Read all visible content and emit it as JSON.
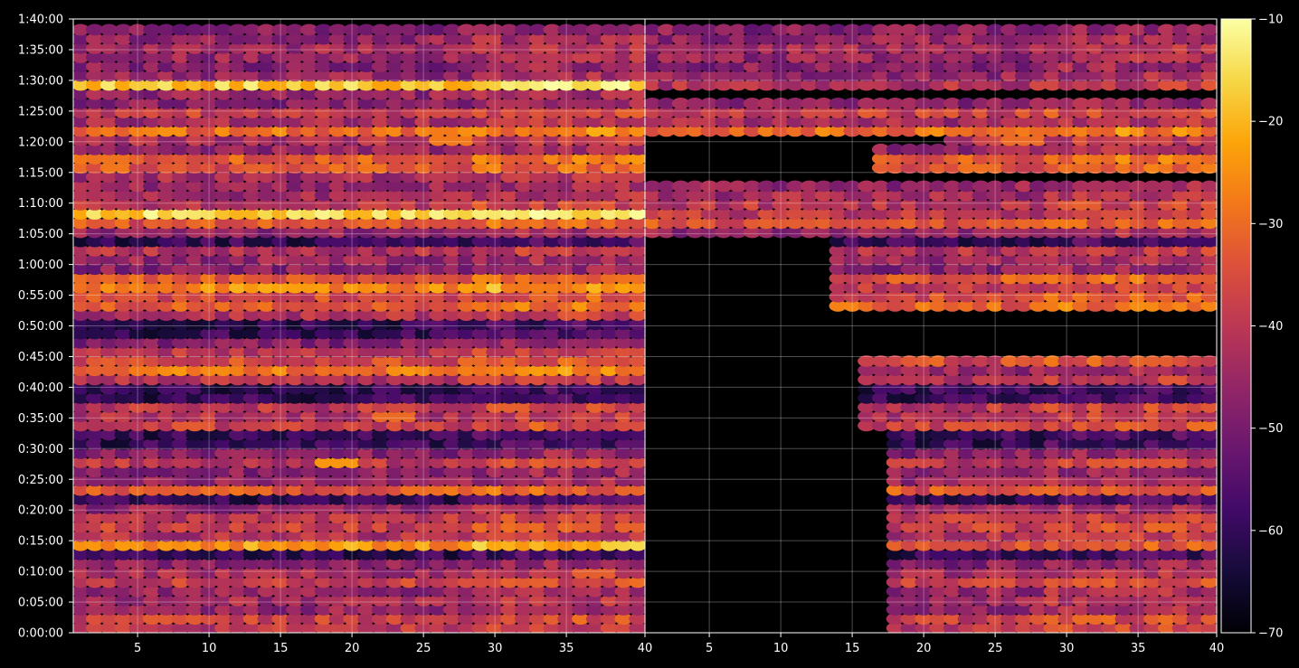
{
  "chart_data": {
    "type": "heatmap",
    "panels": [
      {
        "xlim": [
          1,
          40
        ],
        "xticks": [
          5,
          10,
          15,
          20,
          25,
          30,
          35
        ],
        "row_profile": [
          [
            0.7,
            -40
          ],
          [
            1.9,
            -38
          ],
          [
            3.2,
            -46
          ],
          [
            4.4,
            -40
          ],
          [
            5.8,
            -44
          ],
          [
            7.3,
            -46
          ],
          [
            8.8,
            -38
          ],
          [
            10.2,
            -44
          ],
          [
            11.7,
            -48
          ],
          [
            13.6,
            -24
          ],
          [
            15.2,
            -42
          ],
          [
            16.7,
            -38
          ],
          [
            18.3,
            -40
          ],
          [
            19.7,
            -46
          ],
          [
            22.9,
            -34
          ],
          [
            24.3,
            -46
          ],
          [
            25.8,
            -48
          ],
          [
            27.6,
            -40
          ],
          [
            28.7,
            -48
          ],
          [
            33.1,
            -38
          ],
          [
            34.6,
            -42
          ],
          [
            35.9,
            -32
          ],
          [
            37.4,
            -40
          ],
          [
            40.7,
            -42
          ],
          [
            42.1,
            -28
          ],
          [
            43.5,
            -38
          ],
          [
            44.7,
            -36
          ],
          [
            46.3,
            -40
          ],
          [
            47.7,
            -48
          ],
          [
            52.3,
            -42
          ],
          [
            53.9,
            -32
          ],
          [
            55.3,
            -36
          ],
          [
            56.7,
            -26
          ],
          [
            58.2,
            -34
          ],
          [
            59.7,
            -48
          ],
          [
            61.2,
            -46
          ],
          [
            62.8,
            -42
          ],
          [
            65.3,
            -46
          ],
          [
            66.9,
            -34
          ],
          [
            68.4,
            -16
          ],
          [
            69.8,
            -40
          ],
          [
            70.9,
            -44
          ],
          [
            72.2,
            -46
          ],
          [
            73.6,
            -44
          ],
          [
            75.0,
            -30
          ],
          [
            76.4,
            -34
          ],
          [
            77.6,
            -32
          ],
          [
            79.4,
            -46
          ],
          [
            80.8,
            -42
          ],
          [
            82.3,
            -30
          ],
          [
            83.5,
            -44
          ],
          [
            85.0,
            -38
          ],
          [
            86.4,
            -48
          ],
          [
            87.9,
            -46
          ],
          [
            89.3,
            -18
          ],
          [
            90.6,
            -46
          ],
          [
            92.2,
            -48
          ],
          [
            93.5,
            -46
          ],
          [
            94.9,
            -44
          ],
          [
            96.3,
            -46
          ],
          [
            97.6,
            -44
          ],
          [
            98.7,
            -48
          ]
        ],
        "hot_spots": [
          [
            27,
            81,
            -28
          ],
          [
            19,
            28,
            -24
          ],
          [
            23,
            35.5,
            -30
          ],
          [
            29,
            41,
            -34
          ],
          [
            37,
            10,
            -32
          ]
        ],
        "blank_regions": []
      },
      {
        "xlim": [
          1,
          40
        ],
        "xticks": [
          5,
          10,
          15,
          20,
          25,
          30,
          35
        ],
        "row_profile": [
          [
            0.7,
            -40
          ],
          [
            1.9,
            -38
          ],
          [
            3.2,
            -46
          ],
          [
            4.4,
            -40
          ],
          [
            5.8,
            -44
          ],
          [
            7.3,
            -46
          ],
          [
            8.8,
            -38
          ],
          [
            10.2,
            -44
          ],
          [
            11.7,
            -48
          ],
          [
            13.6,
            -36
          ],
          [
            15.2,
            -42
          ],
          [
            16.7,
            -38
          ],
          [
            18.3,
            -40
          ],
          [
            19.7,
            -46
          ],
          [
            22.9,
            -34
          ],
          [
            24.3,
            -46
          ],
          [
            25.8,
            -48
          ],
          [
            27.6,
            -40
          ],
          [
            28.7,
            -48
          ],
          [
            33.1,
            -38
          ],
          [
            34.6,
            -42
          ],
          [
            35.9,
            -32
          ],
          [
            37.4,
            -40
          ],
          [
            40.7,
            -42
          ],
          [
            42.1,
            -46
          ],
          [
            43.5,
            -38
          ],
          [
            44.7,
            -36
          ],
          [
            46.3,
            -40
          ],
          [
            47.7,
            -48
          ],
          [
            52.3,
            -42
          ],
          [
            53.9,
            -32
          ],
          [
            55.3,
            -36
          ],
          [
            56.7,
            -40
          ],
          [
            58.2,
            -34
          ],
          [
            59.7,
            -48
          ],
          [
            61.2,
            -46
          ],
          [
            62.8,
            -42
          ],
          [
            65.3,
            -46
          ],
          [
            66.9,
            -34
          ],
          [
            68.4,
            -40
          ],
          [
            69.8,
            -40
          ],
          [
            70.9,
            -44
          ],
          [
            72.2,
            -46
          ],
          [
            73.6,
            -44
          ],
          [
            75.0,
            -30
          ],
          [
            76.4,
            -34
          ],
          [
            77.6,
            -32
          ],
          [
            79.4,
            -46
          ],
          [
            80.8,
            -42
          ],
          [
            82.3,
            -30
          ],
          [
            83.5,
            -44
          ],
          [
            85.0,
            -38
          ],
          [
            86.4,
            -48
          ],
          [
            87.9,
            -46
          ],
          [
            89.3,
            -42
          ],
          [
            90.6,
            -46
          ],
          [
            92.2,
            -48
          ],
          [
            93.5,
            -46
          ],
          [
            94.9,
            -44
          ],
          [
            96.3,
            -46
          ],
          [
            97.6,
            -44
          ],
          [
            98.7,
            -48
          ]
        ],
        "hot_spots": [
          [
            27,
            81,
            -30
          ],
          [
            19,
            28,
            -38
          ]
        ],
        "blank_regions": [
          [
            1,
            17,
            0,
            32.5
          ],
          [
            1,
            15,
            32.5,
            45
          ],
          [
            1,
            40,
            45.5,
            52
          ],
          [
            1,
            13,
            52,
            64
          ],
          [
            1,
            40,
            64,
            65
          ],
          [
            1,
            40,
            73,
            74.5
          ],
          [
            1,
            16,
            74.5,
            79.5
          ],
          [
            1,
            21,
            79.5,
            81
          ],
          [
            1,
            40,
            86.8,
            88.6
          ],
          [
            1,
            40,
            99.4,
            100
          ]
        ]
      }
    ],
    "ylim": [
      0,
      100
    ],
    "yticks": [
      "0:00:00",
      "0:05:00",
      "0:10:00",
      "0:15:00",
      "0:20:00",
      "0:25:00",
      "0:30:00",
      "0:35:00",
      "0:40:00",
      "0:45:00",
      "0:50:00",
      "0:55:00",
      "1:00:00",
      "1:05:00",
      "1:10:00",
      "1:15:00",
      "1:20:00",
      "1:25:00",
      "1:30:00",
      "1:35:00",
      "1:40:00"
    ],
    "xticks_right_edge": "40",
    "colorbar": {
      "range": [
        -70,
        -10
      ],
      "ticks": [
        "−70",
        "−60",
        "−50",
        "−40",
        "−30",
        "−20",
        "−10"
      ],
      "colormap": "inferno"
    },
    "grid": true
  }
}
